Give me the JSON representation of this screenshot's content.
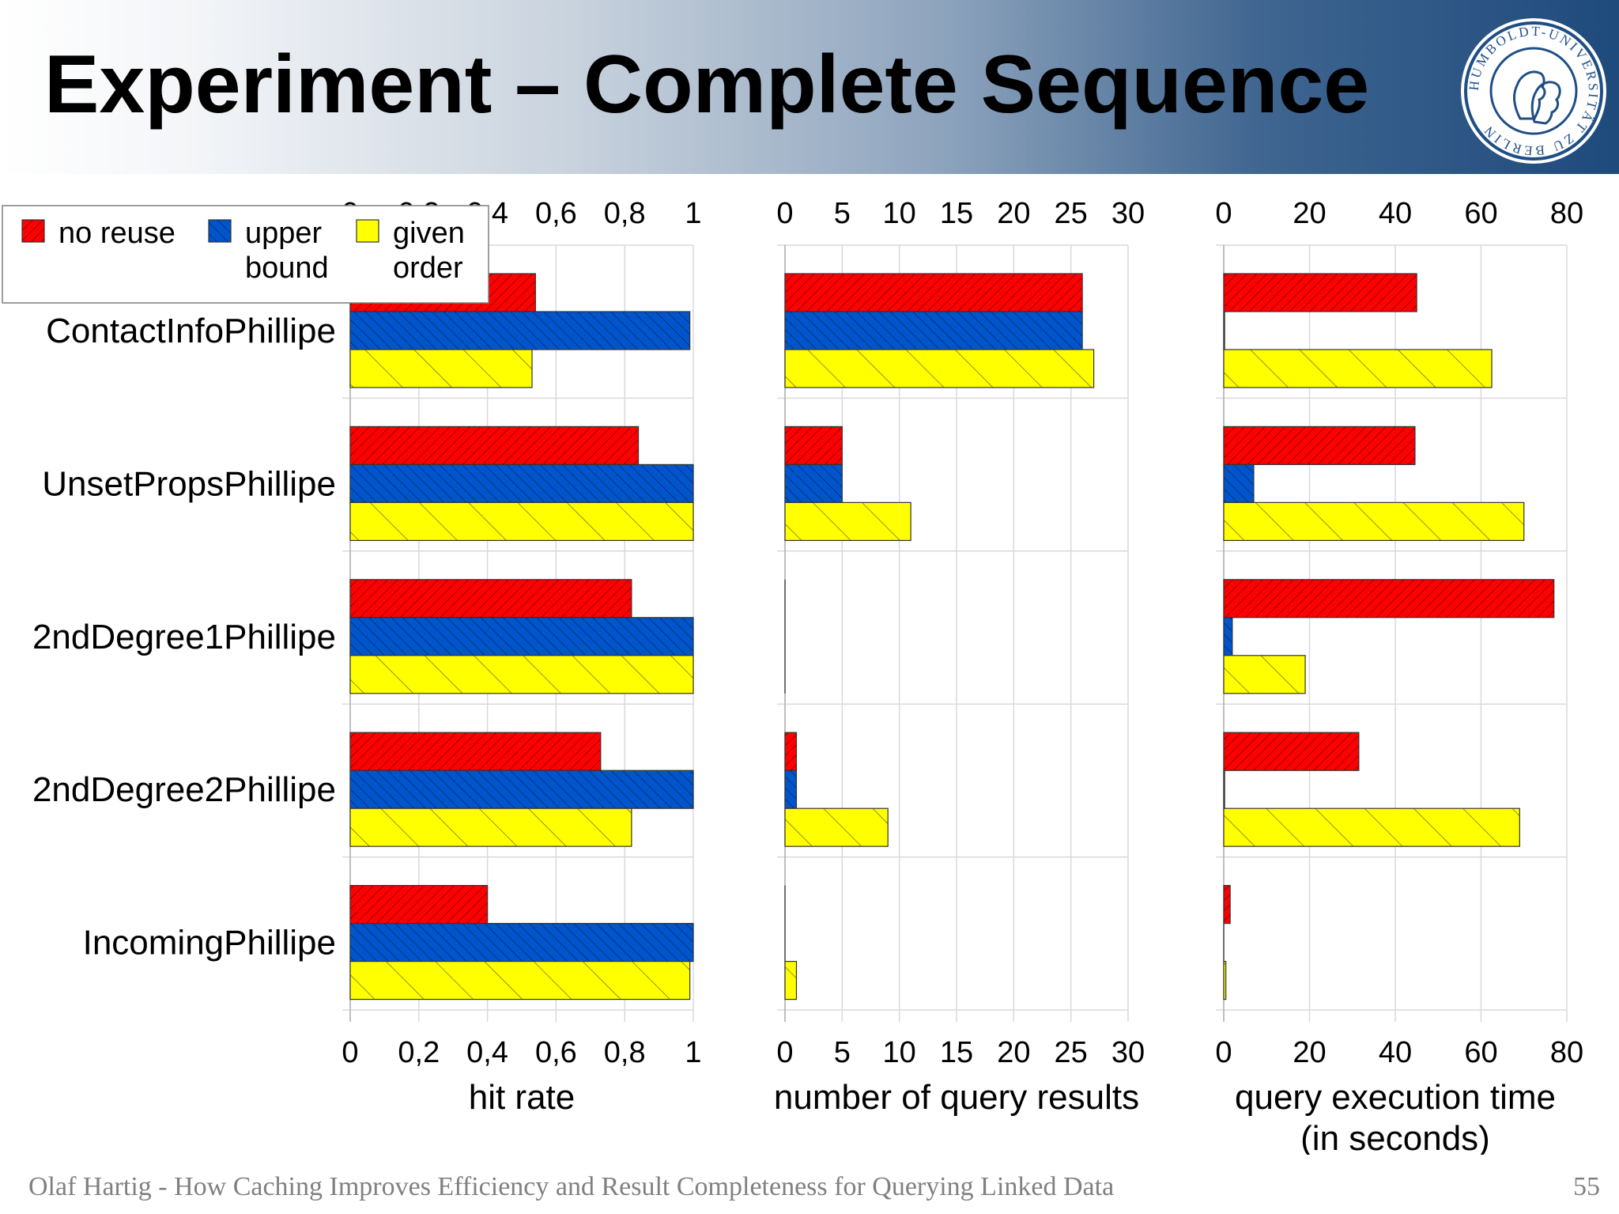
{
  "slide": {
    "title": "Experiment – Complete Sequence",
    "footer": "Olaf Hartig - How Caching Improves Efficiency and Result Completeness for Querying Linked Data",
    "page_number": "55"
  },
  "logo": {
    "text": "HUMBOLDT-UNIVERSITÄT ZU BERLIN",
    "ring_color": "#1f4e85"
  },
  "chart_data": [
    {
      "type": "bar",
      "orientation": "horizontal",
      "xlabel": "hit rate",
      "xlabel_line2": "",
      "xlim": [
        0,
        1
      ],
      "ticks": [
        "0",
        "0,2",
        "0,4",
        "0,6",
        "0,8",
        "1"
      ],
      "categories": [
        "ContactInfoPhillipe",
        "UnsetPropsPhillipe",
        "2ndDegree1Phillipe",
        "2ndDegree2Phillipe",
        "IncomingPhillipe"
      ],
      "series": [
        {
          "name": "no reuse",
          "color": "#ff0000",
          "values": [
            0.54,
            0.84,
            0.82,
            0.73,
            0.4
          ]
        },
        {
          "name": "upper bound",
          "color": "#0055cc",
          "values": [
            0.99,
            1.0,
            1.0,
            1.0,
            1.0
          ]
        },
        {
          "name": "given order",
          "color": "#ffff00",
          "values": [
            0.53,
            1.0,
            1.0,
            0.82,
            0.99
          ]
        }
      ]
    },
    {
      "type": "bar",
      "orientation": "horizontal",
      "xlabel": "number of query results",
      "xlabel_line2": "",
      "xlim": [
        0,
        30
      ],
      "ticks": [
        "0",
        "5",
        "10",
        "15",
        "20",
        "25",
        "30"
      ],
      "categories": [
        "ContactInfoPhillipe",
        "UnsetPropsPhillipe",
        "2ndDegree1Phillipe",
        "2ndDegree2Phillipe",
        "IncomingPhillipe"
      ],
      "series": [
        {
          "name": "no reuse",
          "color": "#ff0000",
          "values": [
            26,
            5,
            0,
            1,
            0
          ]
        },
        {
          "name": "upper bound",
          "color": "#0055cc",
          "values": [
            26,
            5,
            0,
            1,
            0
          ]
        },
        {
          "name": "given order",
          "color": "#ffff00",
          "values": [
            27,
            11,
            0,
            9,
            1
          ]
        }
      ]
    },
    {
      "type": "bar",
      "orientation": "horizontal",
      "xlabel": "query execution time",
      "xlabel_line2": "(in seconds)",
      "xlim": [
        0,
        80
      ],
      "ticks": [
        "0",
        "20",
        "40",
        "60",
        "80"
      ],
      "categories": [
        "ContactInfoPhillipe",
        "UnsetPropsPhillipe",
        "2ndDegree1Phillipe",
        "2ndDegree2Phillipe",
        "IncomingPhillipe"
      ],
      "series": [
        {
          "name": "no reuse",
          "color": "#ff0000",
          "values": [
            45,
            44.6,
            77,
            31.5,
            1.5
          ]
        },
        {
          "name": "upper bound",
          "color": "#0055cc",
          "values": [
            0.2,
            7,
            2,
            0.2,
            0
          ]
        },
        {
          "name": "given order",
          "color": "#ffff00",
          "values": [
            62.5,
            70,
            19,
            69,
            0.5
          ]
        }
      ]
    }
  ],
  "legend": {
    "items": [
      {
        "line1": "no reuse",
        "line2": "",
        "color": "#ff0000"
      },
      {
        "line1": "upper",
        "line2": "bound",
        "color": "#0055cc"
      },
      {
        "line1": "given",
        "line2": "order",
        "color": "#ffff00"
      }
    ]
  }
}
